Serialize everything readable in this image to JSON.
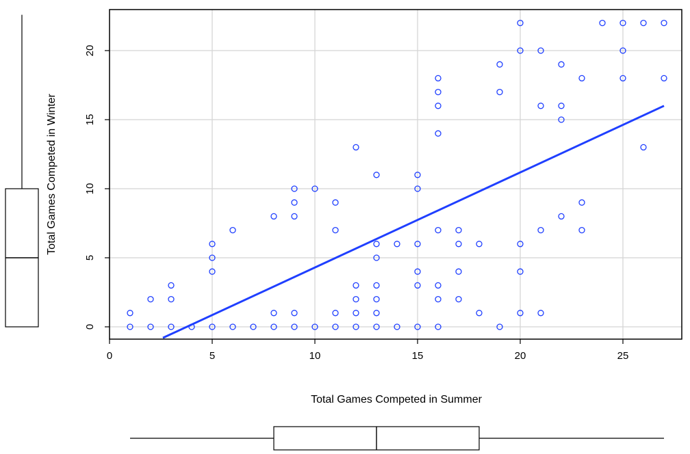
{
  "chart_data": {
    "type": "scatter",
    "title": "",
    "xlabel": "Total Games Competed in Summer",
    "ylabel": "Total Games Competed in Winter",
    "xlim": [
      0,
      28
    ],
    "ylim": [
      -0.8,
      22.5
    ],
    "x_ticks": [
      0,
      5,
      10,
      15,
      20,
      25
    ],
    "y_ticks": [
      0,
      5,
      10,
      15,
      20
    ],
    "x_tick_labels": [
      "0",
      "5",
      "10",
      "15",
      "20",
      "25"
    ],
    "y_tick_labels": [
      "0",
      "5",
      "10",
      "15",
      "20"
    ],
    "grid": true,
    "point_color": "#1f3fff",
    "line_color": "#1f3fff",
    "points": [
      [
        1,
        1
      ],
      [
        1,
        0
      ],
      [
        2,
        2
      ],
      [
        2,
        0
      ],
      [
        3,
        3
      ],
      [
        3,
        2
      ],
      [
        3,
        0
      ],
      [
        4,
        0
      ],
      [
        5,
        6
      ],
      [
        5,
        5
      ],
      [
        5,
        4
      ],
      [
        5,
        0
      ],
      [
        6,
        7
      ],
      [
        6,
        0
      ],
      [
        7,
        0
      ],
      [
        8,
        8
      ],
      [
        8,
        1
      ],
      [
        8,
        0
      ],
      [
        9,
        10
      ],
      [
        9,
        9
      ],
      [
        9,
        8
      ],
      [
        9,
        1
      ],
      [
        9,
        0
      ],
      [
        10,
        10
      ],
      [
        10,
        0
      ],
      [
        11,
        9
      ],
      [
        11,
        7
      ],
      [
        11,
        1
      ],
      [
        11,
        0
      ],
      [
        12,
        13
      ],
      [
        12,
        3
      ],
      [
        12,
        2
      ],
      [
        12,
        1
      ],
      [
        12,
        0
      ],
      [
        13,
        11
      ],
      [
        13,
        6
      ],
      [
        13,
        5
      ],
      [
        13,
        3
      ],
      [
        13,
        2
      ],
      [
        13,
        1
      ],
      [
        13,
        0
      ],
      [
        14,
        6
      ],
      [
        14,
        0
      ],
      [
        15,
        11
      ],
      [
        15,
        10
      ],
      [
        15,
        6
      ],
      [
        15,
        4
      ],
      [
        15,
        3
      ],
      [
        15,
        0
      ],
      [
        16,
        18
      ],
      [
        16,
        17
      ],
      [
        16,
        16
      ],
      [
        16,
        14
      ],
      [
        16,
        7
      ],
      [
        16,
        3
      ],
      [
        16,
        2
      ],
      [
        16,
        0
      ],
      [
        17,
        7
      ],
      [
        17,
        6
      ],
      [
        17,
        4
      ],
      [
        17,
        2
      ],
      [
        18,
        6
      ],
      [
        18,
        1
      ],
      [
        19,
        19
      ],
      [
        19,
        17
      ],
      [
        19,
        0
      ],
      [
        20,
        22
      ],
      [
        20,
        20
      ],
      [
        20,
        6
      ],
      [
        20,
        4
      ],
      [
        20,
        1
      ],
      [
        21,
        20
      ],
      [
        21,
        16
      ],
      [
        21,
        7
      ],
      [
        21,
        1
      ],
      [
        22,
        19
      ],
      [
        22,
        16
      ],
      [
        22,
        15
      ],
      [
        22,
        8
      ],
      [
        23,
        18
      ],
      [
        23,
        9
      ],
      [
        23,
        7
      ],
      [
        24,
        22
      ],
      [
        25,
        22
      ],
      [
        25,
        20
      ],
      [
        25,
        18
      ],
      [
        26,
        22
      ],
      [
        26,
        13
      ],
      [
        27,
        22
      ],
      [
        27,
        18
      ]
    ],
    "regression_line": {
      "x": [
        2.6,
        27
      ],
      "y": [
        -0.8,
        16
      ]
    },
    "x_boxplot": {
      "min": 1,
      "q1": 8,
      "median": 13,
      "q3": 18,
      "max": 27
    },
    "y_boxplot": {
      "min": 0,
      "q1": 0,
      "median": 5,
      "q3": 10,
      "max": 22
    }
  }
}
